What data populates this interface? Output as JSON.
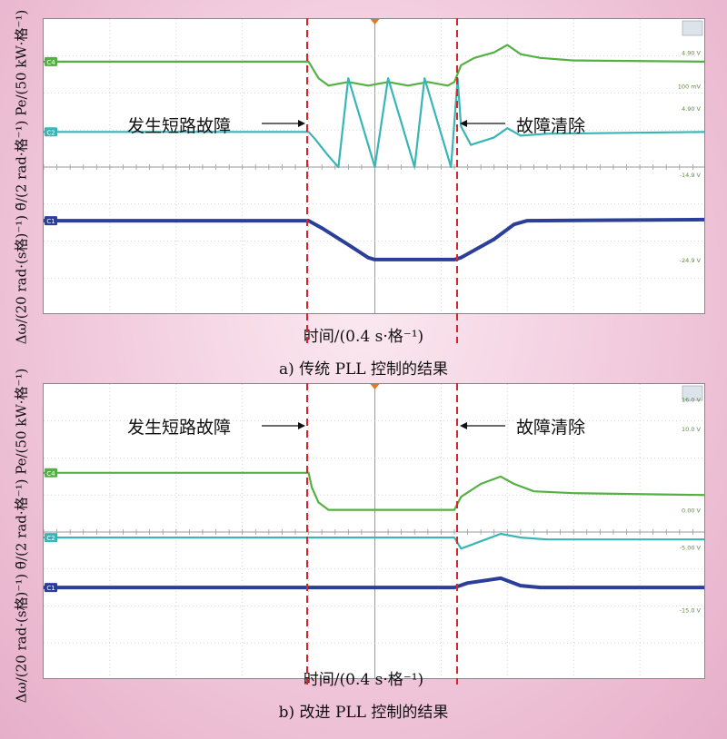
{
  "chart_data": [
    {
      "type": "line",
      "caption": "a) 传统 PLL 控制的结果",
      "xlabel": "时间/(0.4 s·格⁻¹)",
      "ylabel": "Δω/(20 rad·(s格)⁻¹)  θ̃/(2 rad·格⁻¹)  Pe/(50 kW·格⁻¹)",
      "annotations": {
        "fault_start": "发生短路故障",
        "fault_clear": "故障清除"
      },
      "grid": true,
      "x_divisions": 10,
      "y_divisions": 8,
      "fault_start_div": 4,
      "fault_clear_div": 6.2,
      "channel_tags": [
        "C4",
        "C2",
        "C1"
      ],
      "right_scale_labels": [
        "4.90 V",
        "100 mV",
        "4.90 V",
        "-14.9 V",
        "-24.9 V"
      ],
      "series": [
        {
          "channel": "C4",
          "color": "#55b043",
          "points": [
            [
              0,
              6.85
            ],
            [
              4.0,
              6.85
            ],
            [
              4.15,
              6.4
            ],
            [
              4.3,
              6.2
            ],
            [
              4.6,
              6.3
            ],
            [
              4.9,
              6.2
            ],
            [
              5.2,
              6.3
            ],
            [
              5.5,
              6.2
            ],
            [
              5.8,
              6.3
            ],
            [
              6.1,
              6.2
            ],
            [
              6.2,
              6.3
            ],
            [
              6.3,
              6.75
            ],
            [
              6.5,
              6.95
            ],
            [
              6.8,
              7.1
            ],
            [
              7.0,
              7.3
            ],
            [
              7.2,
              7.05
            ],
            [
              7.5,
              6.95
            ],
            [
              8.0,
              6.88
            ],
            [
              10,
              6.85
            ]
          ]
        },
        {
          "channel": "C2",
          "color": "#3ab5b5",
          "points": [
            [
              0,
              4.95
            ],
            [
              4.0,
              4.95
            ],
            [
              4.1,
              4.75
            ],
            [
              4.3,
              4.3
            ],
            [
              4.45,
              4.0
            ],
            [
              4.6,
              6.4
            ],
            [
              4.6,
              6.4
            ],
            [
              5.0,
              4.0
            ],
            [
              5.2,
              6.4
            ],
            [
              5.6,
              4.0
            ],
            [
              5.75,
              6.4
            ],
            [
              6.15,
              4.0
            ],
            [
              6.25,
              6.4
            ],
            [
              6.3,
              5.1
            ],
            [
              6.45,
              4.6
            ],
            [
              6.8,
              4.8
            ],
            [
              7.0,
              5.05
            ],
            [
              7.2,
              4.85
            ],
            [
              7.6,
              4.9
            ],
            [
              10,
              4.95
            ]
          ]
        },
        {
          "channel": "C1",
          "color": "#2b3e9a",
          "points": [
            [
              0,
              2.55
            ],
            [
              4.0,
              2.55
            ],
            [
              4.2,
              2.35
            ],
            [
              4.6,
              1.9
            ],
            [
              4.9,
              1.55
            ],
            [
              5.0,
              1.5
            ],
            [
              6.2,
              1.5
            ],
            [
              6.3,
              1.55
            ],
            [
              6.8,
              2.05
            ],
            [
              7.1,
              2.45
            ],
            [
              7.3,
              2.55
            ],
            [
              10,
              2.58
            ]
          ]
        }
      ]
    },
    {
      "type": "line",
      "caption": "b) 改进 PLL 控制的结果",
      "xlabel": "时间/(0.4 s·格⁻¹)",
      "ylabel": "Δω/(20 rad·(s格)⁻¹)  θ̃/(2 rad·格⁻¹)  Pe/(50 kW·格⁻¹)",
      "annotations": {
        "fault_start": "发生短路故障",
        "fault_clear": "故障清除"
      },
      "grid": true,
      "x_divisions": 10,
      "y_divisions": 8,
      "fault_start_div": 4,
      "fault_clear_div": 6.2,
      "channel_tags": [
        "C4",
        "C2",
        "C1"
      ],
      "right_scale_labels": [
        "16.0 V",
        "10.0 V",
        "0.00 V",
        "-5.00 V",
        "-15.0 V"
      ],
      "series": [
        {
          "channel": "C4",
          "color": "#55b043",
          "points": [
            [
              0,
              5.6
            ],
            [
              4.0,
              5.6
            ],
            [
              4.05,
              5.2
            ],
            [
              4.15,
              4.8
            ],
            [
              4.3,
              4.6
            ],
            [
              6.2,
              4.6
            ],
            [
              6.3,
              4.95
            ],
            [
              6.6,
              5.3
            ],
            [
              6.9,
              5.5
            ],
            [
              7.1,
              5.3
            ],
            [
              7.4,
              5.1
            ],
            [
              8.0,
              5.05
            ],
            [
              10,
              5.0
            ]
          ]
        },
        {
          "channel": "C2",
          "color": "#3ab5b5",
          "points": [
            [
              0,
              3.85
            ],
            [
              4.0,
              3.85
            ],
            [
              6.2,
              3.85
            ],
            [
              6.3,
              3.55
            ],
            [
              6.6,
              3.75
            ],
            [
              6.9,
              3.95
            ],
            [
              7.2,
              3.85
            ],
            [
              7.6,
              3.8
            ],
            [
              10,
              3.8
            ]
          ]
        },
        {
          "channel": "C1",
          "color": "#2b3e9a",
          "points": [
            [
              0,
              2.5
            ],
            [
              4.0,
              2.5
            ],
            [
              6.2,
              2.5
            ],
            [
              6.4,
              2.62
            ],
            [
              6.9,
              2.75
            ],
            [
              7.2,
              2.55
            ],
            [
              7.5,
              2.5
            ],
            [
              10,
              2.5
            ]
          ]
        }
      ]
    }
  ]
}
